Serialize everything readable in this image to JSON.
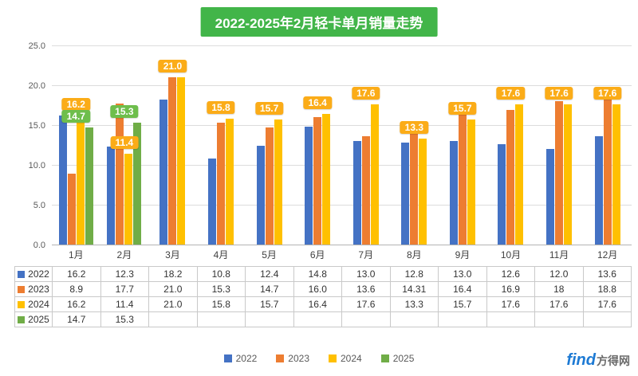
{
  "title": "2022-2025年2月轻卡单月销量走势",
  "title_bg": "#42B549",
  "chart_data": {
    "type": "bar",
    "title": "2022-2025年2月轻卡单月销量走势",
    "categories": [
      "1月",
      "2月",
      "3月",
      "4月",
      "5月",
      "6月",
      "7月",
      "8月",
      "9月",
      "10月",
      "11月",
      "12月"
    ],
    "series": [
      {
        "name": "2022",
        "color": "#4472C4",
        "values": [
          16.2,
          12.3,
          18.2,
          10.8,
          12.4,
          14.8,
          13.0,
          12.8,
          13.0,
          12.6,
          12.0,
          13.6
        ]
      },
      {
        "name": "2023",
        "color": "#ED7D31",
        "values": [
          8.9,
          17.7,
          21.0,
          15.3,
          14.7,
          16.0,
          13.6,
          14.31,
          16.4,
          16.9,
          18,
          18.8
        ]
      },
      {
        "name": "2024",
        "color": "#FFC000",
        "values": [
          16.2,
          11.4,
          21.0,
          15.8,
          15.7,
          16.4,
          17.6,
          13.3,
          15.7,
          17.6,
          17.6,
          17.6
        ]
      },
      {
        "name": "2025",
        "color": "#70AD47",
        "values": [
          14.7,
          15.3,
          null,
          null,
          null,
          null,
          null,
          null,
          null,
          null,
          null,
          null
        ]
      }
    ],
    "data_labels": {
      "2024": [
        "16.2",
        "11.4",
        "21.0",
        "15.8",
        "15.7",
        "16.4",
        "17.6",
        "13.3",
        "15.7",
        "17.6",
        "17.6",
        "17.6"
      ],
      "2025": [
        "14.7",
        "15.3",
        null,
        null,
        null,
        null,
        null,
        null,
        null,
        null,
        null,
        null
      ]
    },
    "label_colors": {
      "2024": "#FBAC18",
      "2025": "#6EBE4C"
    },
    "ylim": [
      0,
      25
    ],
    "yticks": [
      "0.0",
      "5.0",
      "10.0",
      "15.0",
      "20.0",
      "25.0"
    ],
    "grid": true,
    "legend_position": "bottom"
  },
  "table": {
    "rows": [
      {
        "year": "2022",
        "color": "#4472C4",
        "cells": [
          "16.2",
          "12.3",
          "18.2",
          "10.8",
          "12.4",
          "14.8",
          "13.0",
          "12.8",
          "13.0",
          "12.6",
          "12.0",
          "13.6"
        ]
      },
      {
        "year": "2023",
        "color": "#ED7D31",
        "cells": [
          "8.9",
          "17.7",
          "21.0",
          "15.3",
          "14.7",
          "16.0",
          "13.6",
          "14.31",
          "16.4",
          "16.9",
          "18",
          "18.8"
        ]
      },
      {
        "year": "2024",
        "color": "#FFC000",
        "cells": [
          "16.2",
          "11.4",
          "21.0",
          "15.8",
          "15.7",
          "16.4",
          "17.6",
          "13.3",
          "15.7",
          "17.6",
          "17.6",
          "17.6"
        ]
      },
      {
        "year": "2025",
        "color": "#70AD47",
        "cells": [
          "14.7",
          "15.3",
          "",
          "",
          "",
          "",
          "",
          "",
          "",
          "",
          "",
          ""
        ]
      }
    ]
  },
  "legend": {
    "items": [
      {
        "label": "2022",
        "color": "#4472C4"
      },
      {
        "label": "2023",
        "color": "#ED7D31"
      },
      {
        "label": "2024",
        "color": "#FFC000"
      },
      {
        "label": "2025",
        "color": "#70AD47"
      }
    ]
  },
  "watermark": {
    "find": "find",
    "name": "方得网"
  }
}
